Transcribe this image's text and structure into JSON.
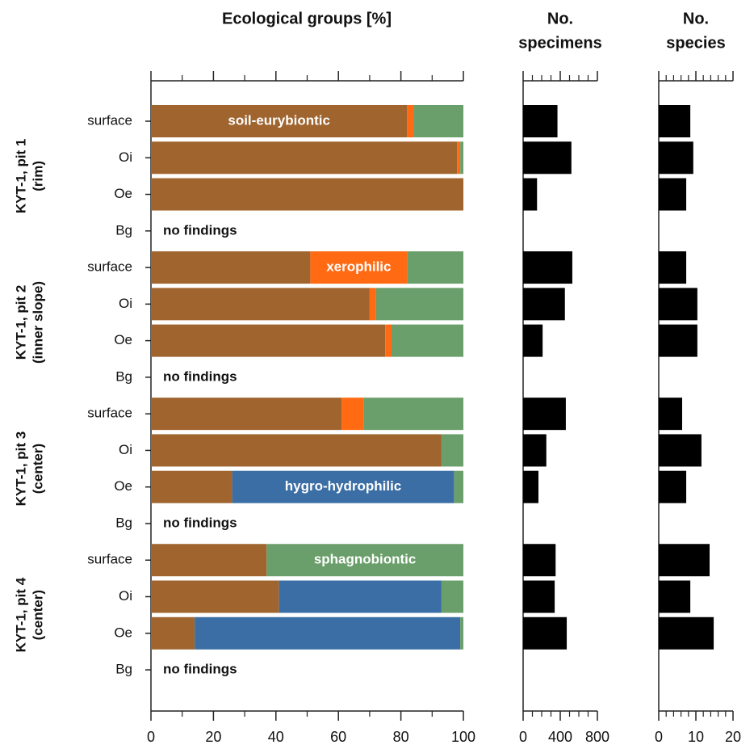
{
  "chart_data": [
    {
      "type": "stacked-barh",
      "title": "Ecological groups [%]",
      "categories": [
        "surface",
        "Oi",
        "Oe",
        "Bg",
        "surface",
        "Oi",
        "Oe",
        "Bg",
        "surface",
        "Oi",
        "Oe",
        "Bg",
        "surface",
        "Oi",
        "Oe",
        "Bg"
      ],
      "groups": [
        {
          "label": "KYT-1, pit 1",
          "sublabel": "(rim)",
          "rows": [
            0,
            3
          ]
        },
        {
          "label": "KYT-1, pit 2",
          "sublabel": "(inner slope)",
          "rows": [
            4,
            7
          ]
        },
        {
          "label": "KYT-1, pit 3",
          "sublabel": "(center)",
          "rows": [
            8,
            11
          ]
        },
        {
          "label": "KYT-1, pit 4",
          "sublabel": "(center)",
          "rows": [
            12,
            15
          ]
        }
      ],
      "series": [
        {
          "name": "soil-eurybiontic",
          "color": "#a0642f",
          "label_at": 0,
          "values": [
            82,
            98,
            100,
            null,
            51,
            70,
            75,
            null,
            61,
            93,
            26,
            null,
            37,
            41,
            14,
            null
          ]
        },
        {
          "name": "xerophilic",
          "color": "#ff6a13",
          "label_at": 4,
          "values": [
            2,
            1,
            0,
            null,
            31,
            2,
            2,
            null,
            7,
            0,
            0,
            null,
            0,
            0,
            0,
            null
          ]
        },
        {
          "name": "hygro-hydrophilic",
          "color": "#3a6ea5",
          "label_at": 10,
          "values": [
            0,
            0,
            0,
            null,
            0,
            0,
            0,
            null,
            0,
            0,
            71,
            null,
            0,
            52,
            85,
            null
          ]
        },
        {
          "name": "sphagnobiontic",
          "color": "#6a9e6a",
          "label_at": 12,
          "values": [
            16,
            1,
            0,
            null,
            18,
            28,
            23,
            null,
            32,
            7,
            3,
            null,
            63,
            7,
            1,
            null
          ]
        }
      ],
      "annotations": [
        {
          "text": "no findings",
          "row": 3
        },
        {
          "text": "no findings",
          "row": 7
        },
        {
          "text": "no findings",
          "row": 11
        },
        {
          "text": "no findings",
          "row": 15
        }
      ],
      "xlim": [
        0,
        100
      ],
      "xticks": [
        0,
        20,
        40,
        60,
        80,
        100
      ],
      "minor_xticks": [
        10,
        30,
        50,
        70,
        90
      ]
    },
    {
      "type": "barh",
      "title": [
        "No.",
        "specimens"
      ],
      "color": "#000000",
      "values": [
        370,
        520,
        150,
        null,
        530,
        450,
        210,
        null,
        460,
        250,
        165,
        null,
        350,
        340,
        470,
        null
      ],
      "xlim": [
        0,
        800
      ],
      "xticks": [
        0,
        400,
        800
      ],
      "minor_xticks": [
        100,
        200,
        300,
        500,
        600,
        700
      ]
    },
    {
      "type": "barh",
      "title": [
        "No.",
        "species"
      ],
      "color": "#000000",
      "values": [
        8.5,
        9.3,
        7.4,
        null,
        7.4,
        10.4,
        10.4,
        null,
        6.3,
        11.5,
        7.4,
        null,
        13.7,
        8.5,
        14.8,
        null
      ],
      "xlim": [
        0,
        20
      ],
      "xticks": [
        0,
        10,
        20
      ],
      "minor_xticks": [
        2,
        4,
        6,
        8,
        12,
        14,
        16,
        18
      ]
    }
  ]
}
